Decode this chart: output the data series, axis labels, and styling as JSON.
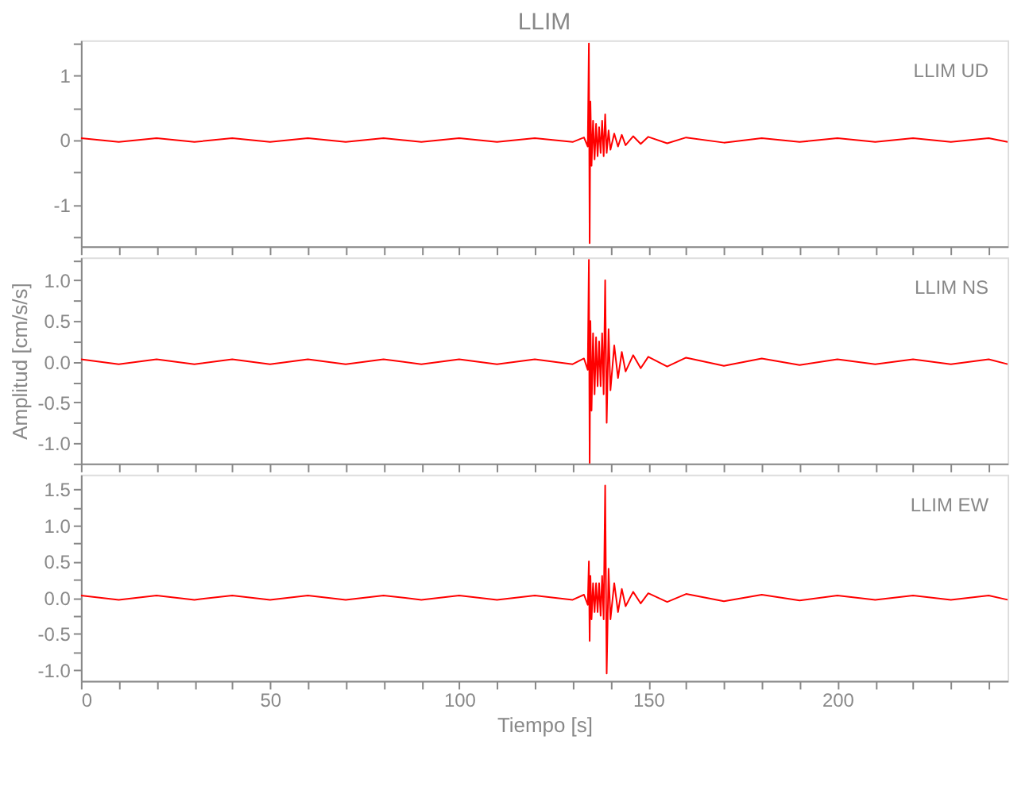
{
  "chart_data": [
    {
      "type": "line",
      "title": "LLIM",
      "annotations": [
        "LLIM   UD"
      ],
      "grid": false,
      "tick_labels": "y",
      "xlim": [
        0,
        245
      ],
      "ylim": [
        -1.65,
        1.55
      ],
      "xticks": [
        0,
        {
          "value": 10,
          "label": null
        },
        {
          "value": 20,
          "label": null
        },
        {
          "value": 30,
          "label": null
        },
        {
          "value": 40,
          "label": null
        },
        50,
        {
          "value": 60,
          "label": null
        },
        {
          "value": 70,
          "label": null
        },
        {
          "value": 80,
          "label": null
        },
        {
          "value": 90,
          "label": null
        },
        100,
        {
          "value": 110,
          "label": null
        },
        {
          "value": 120,
          "label": null
        },
        {
          "value": 130,
          "label": null
        },
        {
          "value": 140,
          "label": null
        },
        150,
        {
          "value": 160,
          "label": null
        },
        {
          "value": 170,
          "label": null
        },
        {
          "value": 180,
          "label": null
        },
        {
          "value": 190,
          "label": null
        },
        200,
        {
          "value": 210,
          "label": null
        },
        {
          "value": 220,
          "label": null
        },
        {
          "value": 230,
          "label": null
        },
        {
          "value": 240,
          "label": null
        }
      ],
      "yticks": [
        {
          "value": -1.5,
          "label": null
        },
        -1,
        {
          "value": -0.5,
          "label": null
        },
        0,
        {
          "value": 0.5,
          "label": null
        },
        1,
        {
          "value": 1.5,
          "label": null
        }
      ],
      "x": [
        0,
        10,
        20,
        30,
        40,
        50,
        60,
        70,
        80,
        90,
        100,
        110,
        120,
        130,
        133,
        134,
        134.3,
        134.5,
        134.7,
        135,
        135.4,
        135.8,
        136.2,
        136.6,
        137,
        137.4,
        137.8,
        138.2,
        138.6,
        139,
        139.5,
        140,
        141,
        142,
        143,
        144,
        146,
        148,
        150,
        155,
        160,
        170,
        180,
        190,
        200,
        210,
        220,
        230,
        240,
        245
      ],
      "series": [
        {
          "color": "#ff0000",
          "values": [
            0.03,
            -0.03,
            0.03,
            -0.03,
            0.03,
            -0.03,
            0.03,
            -0.03,
            0.03,
            -0.03,
            0.03,
            -0.03,
            0.03,
            -0.03,
            0.04,
            -0.1,
            1.5,
            -1.6,
            0.6,
            -0.4,
            0.3,
            -0.3,
            0.25,
            -0.25,
            0.2,
            -0.2,
            0.3,
            -0.25,
            0.4,
            -0.2,
            0.15,
            -0.15,
            0.1,
            -0.1,
            0.08,
            -0.08,
            0.06,
            -0.06,
            0.05,
            -0.05,
            0.04,
            -0.04,
            0.03,
            -0.03,
            0.03,
            -0.03,
            0.03,
            -0.03,
            0.03,
            -0.03
          ]
        }
      ]
    },
    {
      "type": "line",
      "annotations": [
        "LLIM   NS"
      ],
      "ylabel": "Amplitud [cm/s/s]",
      "grid": false,
      "tick_labels": "y",
      "xlim": [
        0,
        245
      ],
      "ylim": [
        -1.25,
        1.28
      ],
      "xticks": [
        0,
        {
          "value": 10,
          "label": null
        },
        {
          "value": 20,
          "label": null
        },
        {
          "value": 30,
          "label": null
        },
        {
          "value": 40,
          "label": null
        },
        50,
        {
          "value": 60,
          "label": null
        },
        {
          "value": 70,
          "label": null
        },
        {
          "value": 80,
          "label": null
        },
        {
          "value": 90,
          "label": null
        },
        100,
        {
          "value": 110,
          "label": null
        },
        {
          "value": 120,
          "label": null
        },
        {
          "value": 130,
          "label": null
        },
        {
          "value": 140,
          "label": null
        },
        150,
        {
          "value": 160,
          "label": null
        },
        {
          "value": 170,
          "label": null
        },
        {
          "value": 180,
          "label": null
        },
        {
          "value": 190,
          "label": null
        },
        200,
        {
          "value": 210,
          "label": null
        },
        {
          "value": 220,
          "label": null
        },
        {
          "value": 230,
          "label": null
        },
        {
          "value": 240,
          "label": null
        }
      ],
      "yticks": [
        {
          "value": -1.25,
          "label": null
        },
        {
          "value": -1,
          "label": "-1.0"
        },
        {
          "value": -0.75,
          "label": null
        },
        -0.5,
        {
          "value": -0.25,
          "label": null
        },
        {
          "value": 0,
          "label": "0.0"
        },
        {
          "value": 0.25,
          "label": null
        },
        0.5,
        {
          "value": 0.75,
          "label": null
        },
        {
          "value": 1,
          "label": "1.0"
        },
        {
          "value": 1.25,
          "label": null
        }
      ],
      "x": [
        0,
        10,
        20,
        30,
        40,
        50,
        60,
        70,
        80,
        90,
        100,
        110,
        120,
        130,
        133,
        134,
        134.3,
        134.5,
        134.7,
        135,
        135.4,
        135.8,
        136.2,
        136.6,
        137,
        137.4,
        137.8,
        138.2,
        138.6,
        139,
        139.5,
        140,
        141,
        142,
        143,
        144,
        146,
        148,
        150,
        155,
        160,
        170,
        180,
        190,
        200,
        210,
        220,
        230,
        240,
        245
      ],
      "series": [
        {
          "color": "#ff0000",
          "values": [
            0.03,
            -0.03,
            0.03,
            -0.03,
            0.03,
            -0.03,
            0.03,
            -0.03,
            0.03,
            -0.03,
            0.03,
            -0.03,
            0.03,
            -0.03,
            0.04,
            -0.1,
            1.25,
            -1.25,
            0.5,
            -0.6,
            0.35,
            -0.4,
            0.3,
            -0.3,
            0.25,
            -0.3,
            0.35,
            -0.4,
            1.0,
            -0.75,
            0.4,
            -0.35,
            0.2,
            -0.2,
            0.12,
            -0.12,
            0.08,
            -0.08,
            0.06,
            -0.06,
            0.05,
            -0.05,
            0.04,
            -0.04,
            0.03,
            -0.03,
            0.03,
            -0.03,
            0.03,
            -0.03
          ]
        }
      ]
    },
    {
      "type": "line",
      "annotations": [
        "LLIM   EW"
      ],
      "xlabel": "Tiempo [s]",
      "grid": false,
      "xlim": [
        0,
        245
      ],
      "ylim": [
        -1.15,
        1.7
      ],
      "xticks": [
        0,
        {
          "value": 10,
          "label": null
        },
        {
          "value": 20,
          "label": null
        },
        {
          "value": 30,
          "label": null
        },
        {
          "value": 40,
          "label": null
        },
        50,
        {
          "value": 60,
          "label": null
        },
        {
          "value": 70,
          "label": null
        },
        {
          "value": 80,
          "label": null
        },
        {
          "value": 90,
          "label": null
        },
        100,
        {
          "value": 110,
          "label": null
        },
        {
          "value": 120,
          "label": null
        },
        {
          "value": 130,
          "label": null
        },
        {
          "value": 140,
          "label": null
        },
        150,
        {
          "value": 160,
          "label": null
        },
        {
          "value": 170,
          "label": null
        },
        {
          "value": 180,
          "label": null
        },
        {
          "value": 190,
          "label": null
        },
        200,
        {
          "value": 210,
          "label": null
        },
        {
          "value": 220,
          "label": null
        },
        {
          "value": 230,
          "label": null
        },
        {
          "value": 240,
          "label": null
        }
      ],
      "yticks": [
        {
          "value": -1,
          "label": "-1.0"
        },
        {
          "value": -0.75,
          "label": null
        },
        -0.5,
        {
          "value": -0.25,
          "label": null
        },
        {
          "value": 0,
          "label": "0.0"
        },
        {
          "value": 0.25,
          "label": null
        },
        0.5,
        {
          "value": 0.75,
          "label": null
        },
        {
          "value": 1,
          "label": "1.0"
        },
        {
          "value": 1.25,
          "label": null
        },
        1.5
      ],
      "x": [
        0,
        10,
        20,
        30,
        40,
        50,
        60,
        70,
        80,
        90,
        100,
        110,
        120,
        130,
        133,
        134,
        134.3,
        134.5,
        134.7,
        135,
        135.4,
        135.8,
        136.2,
        136.6,
        137,
        137.4,
        137.8,
        138.2,
        138.6,
        139,
        139.5,
        140,
        141,
        142,
        143,
        144,
        146,
        148,
        150,
        155,
        160,
        170,
        180,
        190,
        200,
        210,
        220,
        230,
        240,
        245
      ],
      "series": [
        {
          "color": "#ff0000",
          "values": [
            0.03,
            -0.03,
            0.03,
            -0.03,
            0.03,
            -0.03,
            0.03,
            -0.03,
            0.03,
            -0.03,
            0.03,
            -0.03,
            0.03,
            -0.03,
            0.04,
            -0.1,
            0.5,
            -0.6,
            0.3,
            -0.3,
            0.2,
            -0.2,
            0.2,
            -0.2,
            0.2,
            -0.25,
            0.3,
            -0.3,
            1.55,
            -1.05,
            0.4,
            -0.3,
            0.2,
            -0.2,
            0.12,
            -0.12,
            0.08,
            -0.08,
            0.06,
            -0.06,
            0.05,
            -0.05,
            0.04,
            -0.04,
            0.03,
            -0.03,
            0.03,
            -0.03,
            0.03,
            -0.03
          ]
        }
      ]
    }
  ]
}
